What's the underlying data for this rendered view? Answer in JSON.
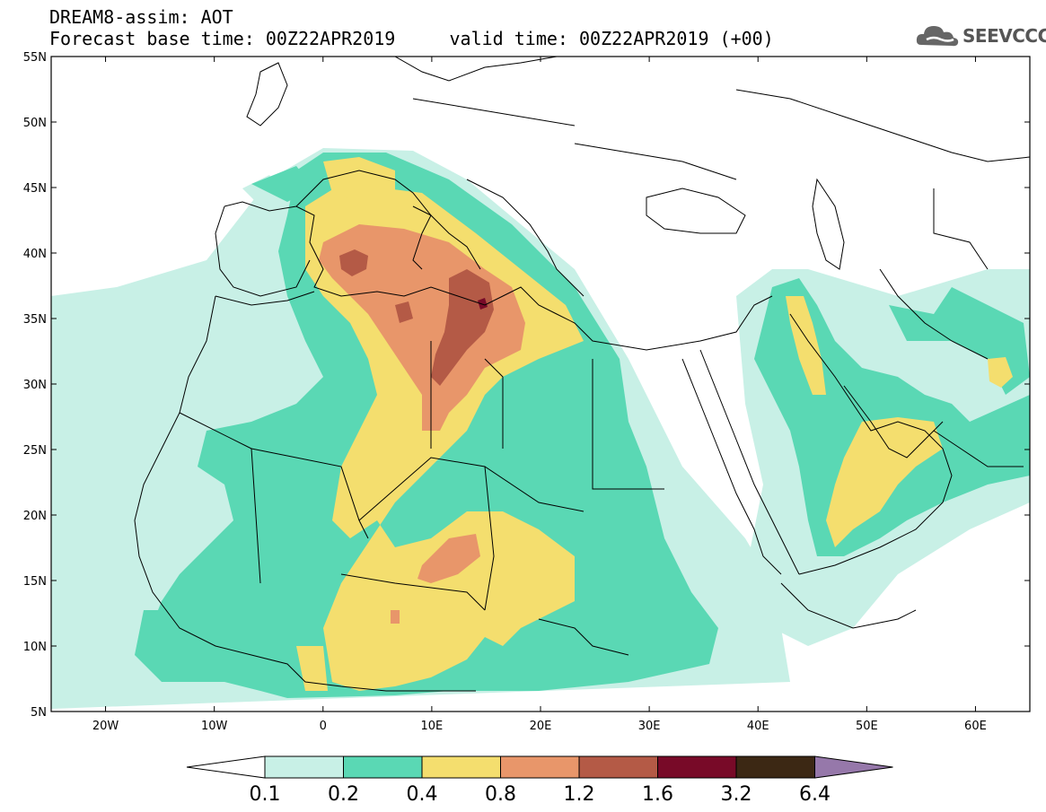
{
  "title": {
    "line1": "DREAM8-assim: AOT",
    "line2": "Forecast base time: 00Z22APR2019     valid time: 00Z22APR2019 (+00)"
  },
  "logo": {
    "text": "SEEVCCC",
    "icon": "cloud-icon"
  },
  "map": {
    "lat_labels": [
      "55N",
      "50N",
      "45N",
      "40N",
      "35N",
      "30N",
      "25N",
      "20N",
      "15N",
      "10N",
      "5N"
    ],
    "lon_labels": [
      "20W",
      "10W",
      "0",
      "10E",
      "20E",
      "30E",
      "40E",
      "50E",
      "60E"
    ],
    "lat_values": [
      55,
      50,
      45,
      40,
      35,
      30,
      25,
      20,
      15,
      10,
      5
    ],
    "lon_values": [
      -20,
      -10,
      0,
      10,
      20,
      30,
      40,
      50,
      60
    ],
    "lon_range": [
      -25,
      65
    ],
    "lat_range": [
      5,
      55
    ]
  },
  "colorbar": {
    "labels": [
      "0.1",
      "0.2",
      "0.4",
      "0.8",
      "1.2",
      "1.6",
      "3.2",
      "6.4"
    ],
    "colors": [
      "#c8f0e6",
      "#5ad8b4",
      "#f4de6e",
      "#e8966a",
      "#b45a46",
      "#780a28",
      "#3c2814",
      "#9678aa"
    ]
  }
}
